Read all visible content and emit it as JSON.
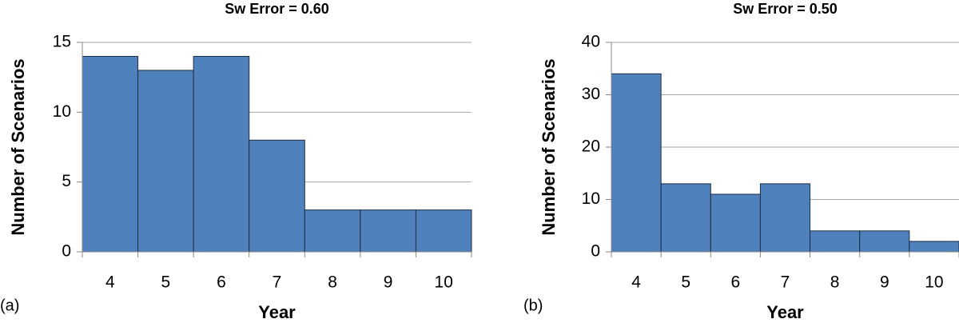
{
  "chart_data": [
    {
      "type": "bar",
      "title": "Sw Error = 0.60",
      "panel_label": "(a)",
      "x_label": "Year",
      "y_label": "Number of Scenarios",
      "categories": [
        "4",
        "5",
        "6",
        "7",
        "8",
        "9",
        "10"
      ],
      "values": [
        14,
        13,
        14,
        8,
        3,
        3,
        3
      ],
      "color": "#4f81bd",
      "ylim": [
        0,
        15
      ],
      "yticks": [
        0,
        5,
        10,
        15
      ],
      "grid": true
    },
    {
      "type": "bar",
      "title": "Sw Error = 0.50",
      "panel_label": "(b)",
      "x_label": "Year",
      "y_label": "Number of Scenarios",
      "categories": [
        "4",
        "5",
        "6",
        "7",
        "8",
        "9",
        "10"
      ],
      "values": [
        34,
        13,
        11,
        13,
        4,
        4,
        2
      ],
      "color": "#4f81bd",
      "ylim": [
        0,
        40
      ],
      "yticks": [
        0,
        10,
        20,
        30,
        40
      ],
      "grid": true
    }
  ]
}
